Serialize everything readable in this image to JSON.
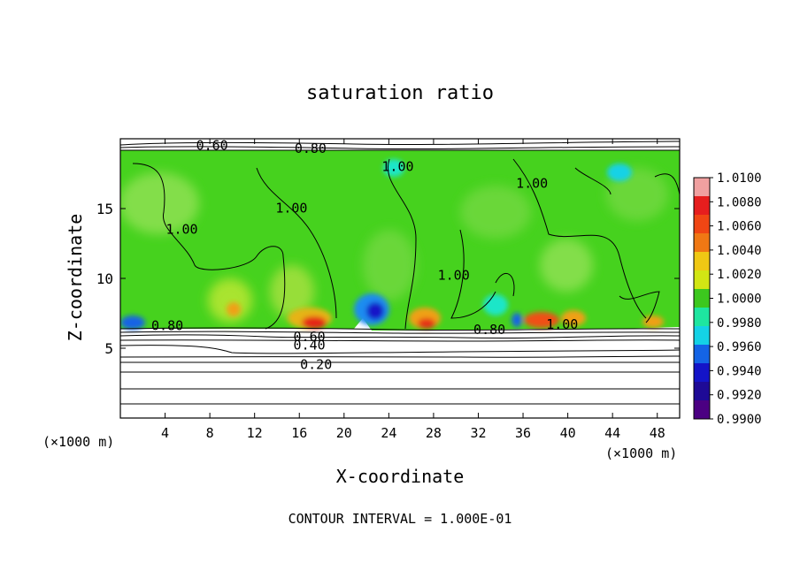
{
  "chart_data": {
    "type": "heatmap",
    "title": "saturation ratio",
    "xlabel": "X-coordinate",
    "ylabel": "Z-coordinate",
    "x_unit_left": "(×1000 m)",
    "x_unit_right": "(×1000 m)",
    "footer": "CONTOUR INTERVAL = 1.000E-01",
    "xlim": [
      0,
      50
    ],
    "ylim": [
      0,
      20
    ],
    "x_ticks": [
      4,
      8,
      12,
      16,
      20,
      24,
      28,
      32,
      36,
      40,
      44,
      48
    ],
    "x_tick_labels": [
      "4",
      "8",
      "12",
      "16",
      "20",
      "24",
      "28",
      "32",
      "36",
      "40",
      "44",
      "48"
    ],
    "y_ticks": [
      5,
      10,
      15
    ],
    "y_tick_labels": [
      "5",
      "10",
      "15"
    ],
    "colorbar": {
      "min": 0.99,
      "max": 1.01,
      "labels": [
        "1.0100",
        "1.0080",
        "1.0060",
        "1.0040",
        "1.0020",
        "1.0000",
        "0.9980",
        "0.9960",
        "0.9940",
        "0.9920",
        "0.9900"
      ],
      "colors": [
        "#f0a0a0",
        "#e61e1e",
        "#f04614",
        "#f07814",
        "#f0c814",
        "#d2e614",
        "#3cc81e",
        "#1ee6a0",
        "#14d2e6",
        "#1464e6",
        "#1414c8",
        "#1e0a96",
        "#4b0082"
      ]
    },
    "contour_labels": [
      {
        "text": "0.60",
        "x": 8.2,
        "z": 19.2
      },
      {
        "text": "0.80",
        "x": 17.0,
        "z": 19.0
      },
      {
        "text": "1.00",
        "x": 24.8,
        "z": 17.7
      },
      {
        "text": "1.00",
        "x": 36.8,
        "z": 16.5
      },
      {
        "text": "1.00",
        "x": 15.3,
        "z": 14.7
      },
      {
        "text": "1.00",
        "x": 5.5,
        "z": 13.2
      },
      {
        "text": "1.00",
        "x": 29.8,
        "z": 9.9
      },
      {
        "text": "0.80",
        "x": 4.2,
        "z": 6.3
      },
      {
        "text": "0.60",
        "x": 16.9,
        "z": 5.5
      },
      {
        "text": "0.40",
        "x": 16.9,
        "z": 4.9
      },
      {
        "text": "0.20",
        "x": 17.5,
        "z": 3.5
      },
      {
        "text": "0.80",
        "x": 33.0,
        "z": 6.0
      },
      {
        "text": "1.00",
        "x": 39.5,
        "z": 6.4
      }
    ]
  }
}
